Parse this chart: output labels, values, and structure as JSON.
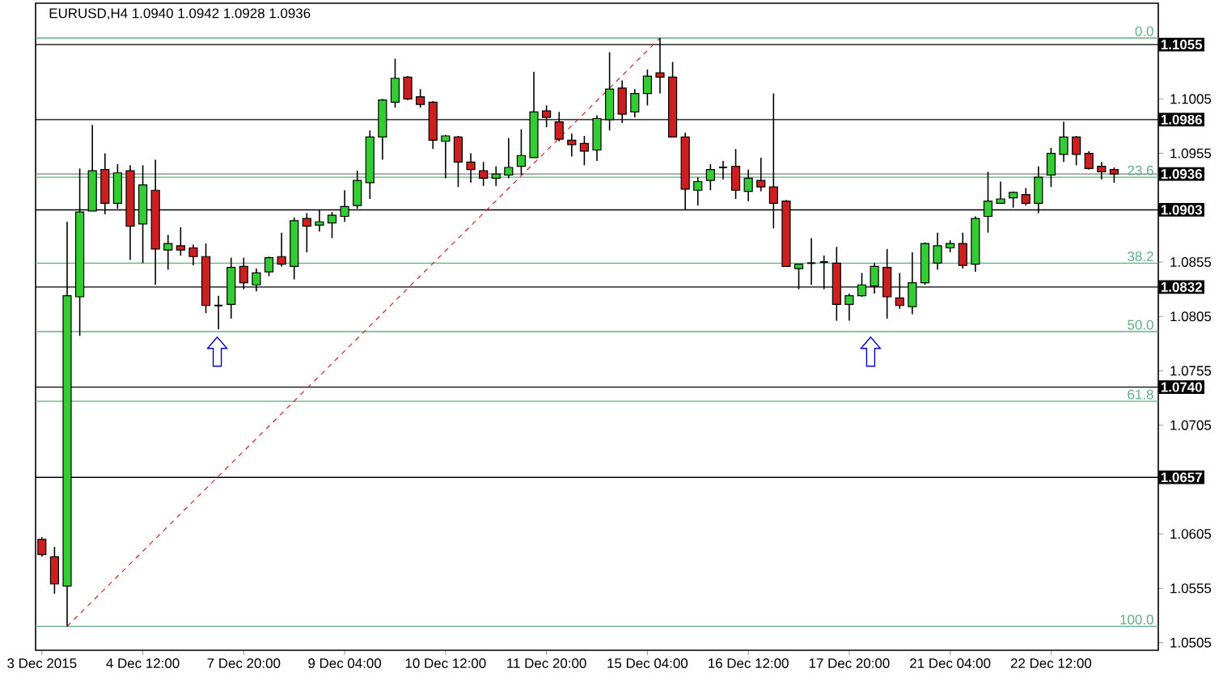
{
  "chart_data": {
    "type": "candlestick",
    "title": "EURUSD,H4 1.0940 1.0942 1.0928 1.0936",
    "categories": [
      "3 Dec 2015",
      null,
      null,
      null,
      null,
      null,
      null,
      null,
      "4 Dec 12:00",
      null,
      null,
      null,
      null,
      null,
      null,
      null,
      "7 Dec 20:00",
      null,
      null,
      null,
      null,
      null,
      null,
      null,
      "9 Dec 04:00",
      null,
      null,
      null,
      null,
      null,
      null,
      null,
      "10 Dec 12:00",
      null,
      null,
      null,
      null,
      null,
      null,
      null,
      "11 Dec 20:00",
      null,
      null,
      null,
      null,
      null,
      null,
      null,
      "15 Dec 04:00",
      null,
      null,
      null,
      null,
      null,
      null,
      null,
      "16 Dec 12:00",
      null,
      null,
      null,
      null,
      null,
      null,
      null,
      "17 Dec 20:00",
      null,
      null,
      null,
      null,
      null,
      null,
      null,
      "21 Dec 04:00",
      null,
      null,
      null,
      null,
      null,
      null,
      null,
      "22 Dec 12:00",
      null,
      null,
      null,
      null,
      null
    ],
    "ohlc": [
      [
        1.06,
        1.0602,
        1.0584,
        1.0586
      ],
      [
        1.0584,
        1.0593,
        1.055,
        1.0559
      ],
      [
        1.0557,
        1.0892,
        1.052,
        1.0824
      ],
      [
        1.0823,
        1.0941,
        1.0787,
        1.0901
      ],
      [
        1.0902,
        1.0981,
        1.0902,
        1.0939
      ],
      [
        1.094,
        1.0955,
        1.0899,
        1.0909
      ],
      [
        1.0909,
        1.0945,
        1.0904,
        1.0937
      ],
      [
        1.0939,
        1.0944,
        1.0857,
        1.0888
      ],
      [
        1.089,
        1.0944,
        1.0854,
        1.0926
      ],
      [
        1.0921,
        1.0949,
        1.0834,
        1.0867
      ],
      [
        1.0866,
        1.088,
        1.0848,
        1.0872
      ],
      [
        1.087,
        1.0887,
        1.0861,
        1.0866
      ],
      [
        1.0868,
        1.0871,
        1.0852,
        1.086
      ],
      [
        1.086,
        1.0872,
        1.0808,
        1.0815
      ],
      [
        1.0815,
        1.0824,
        1.0793,
        1.0815
      ],
      [
        1.0816,
        1.0859,
        1.0803,
        1.085
      ],
      [
        1.0851,
        1.0859,
        1.083,
        1.0836
      ],
      [
        1.0834,
        1.0849,
        1.0828,
        1.0845
      ],
      [
        1.0846,
        1.086,
        1.0842,
        1.0859
      ],
      [
        1.086,
        1.0882,
        1.0851,
        1.0853
      ],
      [
        1.0851,
        1.0896,
        1.0839,
        1.0893
      ],
      [
        1.0895,
        1.09,
        1.0864,
        1.0888
      ],
      [
        1.0889,
        1.0903,
        1.0883,
        1.0892
      ],
      [
        1.0891,
        1.0901,
        1.0877,
        1.0898
      ],
      [
        1.0897,
        1.0921,
        1.0892,
        1.0906
      ],
      [
        1.0907,
        1.0939,
        1.0904,
        1.093
      ],
      [
        1.0928,
        1.0976,
        1.0913,
        1.097
      ],
      [
        1.097,
        1.1005,
        1.0949,
        1.1004
      ],
      [
        1.1002,
        1.1042,
        1.0997,
        1.1024
      ],
      [
        1.1025,
        1.1026,
        1.1004,
        1.1005
      ],
      [
        1.1007,
        1.1014,
        1.0997,
        1.1
      ],
      [
        1.1002,
        1.1003,
        1.0959,
        1.0967
      ],
      [
        1.0966,
        1.0972,
        1.0932,
        1.0971
      ],
      [
        1.097,
        1.0971,
        1.0924,
        1.0947
      ],
      [
        1.0947,
        1.0955,
        1.0928,
        1.094
      ],
      [
        1.0939,
        1.0947,
        1.0925,
        1.0932
      ],
      [
        1.0932,
        1.0943,
        1.0925,
        1.0936
      ],
      [
        1.0935,
        1.0969,
        1.0932,
        1.0942
      ],
      [
        1.0943,
        1.0977,
        1.0935,
        1.0953
      ],
      [
        1.0951,
        1.103,
        1.0951,
        1.0993
      ],
      [
        1.0994,
        1.0999,
        1.0979,
        1.0988
      ],
      [
        1.0984,
        1.0993,
        1.0966,
        1.0968
      ],
      [
        1.0967,
        1.0973,
        1.0952,
        1.0963
      ],
      [
        1.0964,
        1.0971,
        1.0944,
        1.0957
      ],
      [
        1.0958,
        1.099,
        1.0948,
        1.0987
      ],
      [
        1.0986,
        1.1048,
        1.0976,
        1.1014
      ],
      [
        1.1015,
        1.1022,
        1.0983,
        1.0991
      ],
      [
        1.0993,
        1.1014,
        1.0988,
        1.101
      ],
      [
        1.101,
        1.1032,
        1.0999,
        1.1026
      ],
      [
        1.1029,
        1.1061,
        1.101,
        1.1025
      ],
      [
        1.1025,
        1.1039,
        1.097,
        1.097
      ],
      [
        1.097,
        1.0974,
        1.0903,
        1.0922
      ],
      [
        1.0921,
        1.0933,
        1.0907,
        1.0929
      ],
      [
        1.093,
        1.0945,
        1.0921,
        1.094
      ],
      [
        1.0942,
        1.0948,
        1.0931,
        1.0942
      ],
      [
        1.0943,
        1.0959,
        1.0913,
        1.0921
      ],
      [
        1.092,
        1.094,
        1.0911,
        1.0932
      ],
      [
        1.093,
        1.0951,
        1.092,
        1.0924
      ],
      [
        1.0924,
        1.101,
        1.0886,
        1.0909
      ],
      [
        1.0911,
        1.0912,
        1.0851,
        1.0851
      ],
      [
        1.0849,
        1.0853,
        1.083,
        1.0853
      ],
      [
        1.0854,
        1.0877,
        1.0834,
        1.0854
      ],
      [
        1.0855,
        1.0861,
        1.083,
        1.0855
      ],
      [
        1.0854,
        1.0869,
        1.0801,
        1.0816
      ],
      [
        1.0816,
        1.0826,
        1.0801,
        1.0824
      ],
      [
        1.0824,
        1.0845,
        1.0823,
        1.0834
      ],
      [
        1.0833,
        1.0854,
        1.0826,
        1.0851
      ],
      [
        1.085,
        1.0867,
        1.0803,
        1.0823
      ],
      [
        1.0822,
        1.0845,
        1.0812,
        1.0815
      ],
      [
        1.0814,
        1.0864,
        1.0807,
        1.0836
      ],
      [
        1.0836,
        1.0873,
        1.0834,
        1.0872
      ],
      [
        1.0854,
        1.0882,
        1.0848,
        1.087
      ],
      [
        1.0868,
        1.0875,
        1.0864,
        1.0872
      ],
      [
        1.0872,
        1.0882,
        1.0849,
        1.0852
      ],
      [
        1.0853,
        1.0897,
        1.0846,
        1.0895
      ],
      [
        1.0897,
        1.0938,
        1.0882,
        1.0911
      ],
      [
        1.0909,
        1.0929,
        1.0909,
        1.0913
      ],
      [
        1.0914,
        1.092,
        1.0905,
        1.0919
      ],
      [
        1.0917,
        1.0923,
        1.0907,
        1.0909
      ],
      [
        1.0909,
        1.0943,
        1.09,
        1.0933
      ],
      [
        1.0935,
        1.096,
        1.0924,
        1.0955
      ],
      [
        1.0954,
        1.0984,
        1.0947,
        1.097
      ],
      [
        1.097,
        1.0971,
        1.0944,
        1.0954
      ],
      [
        1.0955,
        1.0957,
        1.094,
        1.0941
      ],
      [
        1.0943,
        1.0947,
        1.0931,
        1.0938
      ],
      [
        1.094,
        1.0942,
        1.0928,
        1.0936
      ]
    ],
    "colors": [
      "#cc1f1f",
      "#cc1f1f",
      "#33cc33",
      "#33cc33",
      "#33cc33",
      "#cc1f1f",
      "#33cc33",
      "#cc1f1f",
      "#33cc33",
      "#cc1f1f",
      "#33cc33",
      "#cc1f1f",
      "#cc1f1f",
      "#cc1f1f",
      "#000000",
      "#33cc33",
      "#cc1f1f",
      "#33cc33",
      "#33cc33",
      "#cc1f1f",
      "#33cc33",
      "#cc1f1f",
      "#33cc33",
      "#33cc33",
      "#33cc33",
      "#33cc33",
      "#33cc33",
      "#33cc33",
      "#33cc33",
      "#cc1f1f",
      "#cc1f1f",
      "#cc1f1f",
      "#33cc33",
      "#cc1f1f",
      "#cc1f1f",
      "#cc1f1f",
      "#33cc33",
      "#33cc33",
      "#33cc33",
      "#33cc33",
      "#cc1f1f",
      "#cc1f1f",
      "#cc1f1f",
      "#cc1f1f",
      "#33cc33",
      "#33cc33",
      "#cc1f1f",
      "#33cc33",
      "#33cc33",
      "#cc1f1f",
      "#cc1f1f",
      "#cc1f1f",
      "#33cc33",
      "#33cc33",
      "#000000",
      "#cc1f1f",
      "#33cc33",
      "#cc1f1f",
      "#cc1f1f",
      "#cc1f1f",
      "#33cc33",
      "#000000",
      "#000000",
      "#cc1f1f",
      "#33cc33",
      "#33cc33",
      "#33cc33",
      "#cc1f1f",
      "#cc1f1f",
      "#33cc33",
      "#33cc33",
      "#33cc33",
      "#33cc33",
      "#cc1f1f",
      "#33cc33",
      "#33cc33",
      "#33cc33",
      "#33cc33",
      "#cc1f1f",
      "#33cc33",
      "#33cc33",
      "#33cc33",
      "#cc1f1f",
      "#cc1f1f",
      "#cc1f1f",
      "#cc1f1f"
    ],
    "series": [
      {
        "type": "line",
        "color": "#cc2222",
        "line_style": "dashed",
        "values": [
          null,
          null,
          1.052,
          null,
          null,
          null,
          null,
          null,
          null,
          null,
          null,
          null,
          null,
          null,
          null,
          null,
          null,
          null,
          null,
          null,
          null,
          null,
          null,
          null,
          null,
          null,
          null,
          null,
          null,
          null,
          null,
          null,
          null,
          null,
          null,
          null,
          null,
          null,
          null,
          null,
          null,
          null,
          null,
          null,
          null,
          null,
          null,
          null,
          null,
          1.1061,
          null,
          null,
          null,
          null,
          null,
          null,
          null,
          null,
          null,
          null,
          null,
          null,
          null,
          null,
          null,
          null,
          null,
          null,
          null,
          null,
          null,
          null,
          null,
          null,
          null,
          null,
          null,
          null,
          null,
          null,
          null,
          null,
          null,
          null,
          null,
          null
        ]
      }
    ],
    "ylim": [
      1.0498,
      1.1093
    ],
    "yticks": [
      1.1005,
      1.0955,
      1.0855,
      1.0805,
      1.0755,
      1.0705,
      1.0605,
      1.0555,
      1.0505
    ],
    "ref_lines": [
      {
        "axis": "y",
        "value": 1.1055,
        "label": "1.1055",
        "color": "#000000"
      },
      {
        "axis": "y",
        "value": 1.0986,
        "label": "1.0986",
        "color": "#000000"
      },
      {
        "axis": "y",
        "value": 1.0936,
        "label": "1.0936",
        "color": "#7f7f7f"
      },
      {
        "axis": "y",
        "value": 1.0903,
        "label": "1.0903",
        "color": "#000000"
      },
      {
        "axis": "y",
        "value": 1.0832,
        "label": "1.0832",
        "color": "#000000"
      },
      {
        "axis": "y",
        "value": 1.074,
        "label": "1.0740",
        "color": "#000000"
      },
      {
        "axis": "y",
        "value": 1.0657,
        "label": "1.0657",
        "color": "#000000"
      },
      {
        "axis": "y",
        "value": 1.1061,
        "color": "#5fae84"
      },
      {
        "axis": "y",
        "value": 1.0933,
        "color": "#5fae84"
      },
      {
        "axis": "y",
        "value": 1.0854,
        "color": "#5fae84"
      },
      {
        "axis": "y",
        "value": 1.0791,
        "color": "#5fae84"
      },
      {
        "axis": "y",
        "value": 1.0727,
        "color": "#5fae84"
      },
      {
        "axis": "y",
        "value": 1.052,
        "color": "#5fae84"
      }
    ],
    "annotations": [
      {
        "text": "0.0",
        "y": 1.1061
      },
      {
        "text": "23.6",
        "y": 1.0933
      },
      {
        "text": "38.2",
        "y": 1.0854
      },
      {
        "text": "50.0",
        "y": 1.0791
      },
      {
        "text": "61.8",
        "y": 1.0727
      },
      {
        "text": "100.0",
        "y": 1.052
      }
    ]
  }
}
